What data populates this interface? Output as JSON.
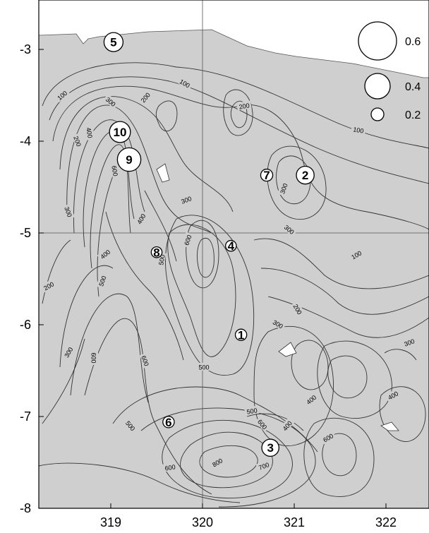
{
  "map": {
    "x_ticks": [
      "319",
      "320",
      "321",
      "322"
    ],
    "y_ticks": [
      "-3",
      "-4",
      "-5",
      "-6",
      "-7",
      "-8"
    ],
    "contour_labels": [
      "100",
      "100",
      "100",
      "100",
      "200",
      "200",
      "200",
      "200",
      "200",
      "300",
      "300",
      "300",
      "300",
      "300",
      "300",
      "300",
      "400",
      "400",
      "400",
      "400",
      "400",
      "400",
      "500",
      "500",
      "500",
      "500",
      "500",
      "600",
      "600",
      "600",
      "600",
      "600",
      "600",
      "700",
      "800",
      "600",
      "300"
    ],
    "stations": [
      {
        "id": "1",
        "lon": 320.42,
        "lat": -6.11,
        "value": 0.18
      },
      {
        "id": "2",
        "lon": 321.12,
        "lat": -4.37,
        "value": 0.28
      },
      {
        "id": "3",
        "lon": 320.74,
        "lat": -7.34,
        "value": 0.27
      },
      {
        "id": "4",
        "lon": 320.31,
        "lat": -5.14,
        "value": 0.17
      },
      {
        "id": "5",
        "lon": 319.03,
        "lat": -2.92,
        "value": 0.3
      },
      {
        "id": "6",
        "lon": 319.63,
        "lat": -7.06,
        "value": 0.18
      },
      {
        "id": "7",
        "lon": 320.7,
        "lat": -4.37,
        "value": 0.19
      },
      {
        "id": "8",
        "lon": 319.5,
        "lat": -5.21,
        "value": 0.17
      },
      {
        "id": "9",
        "lon": 319.2,
        "lat": -4.2,
        "value": 0.37
      },
      {
        "id": "10",
        "lon": 319.1,
        "lat": -3.9,
        "value": 0.33
      }
    ],
    "legend": [
      {
        "label": "0.6",
        "value": 0.6
      },
      {
        "label": "0.4",
        "value": 0.4
      },
      {
        "label": "0.2",
        "value": 0.2
      }
    ],
    "colors": {
      "land": "#cfcfcf",
      "sea": "#ffffff",
      "contour": "#333333",
      "frame": "#000000"
    }
  }
}
